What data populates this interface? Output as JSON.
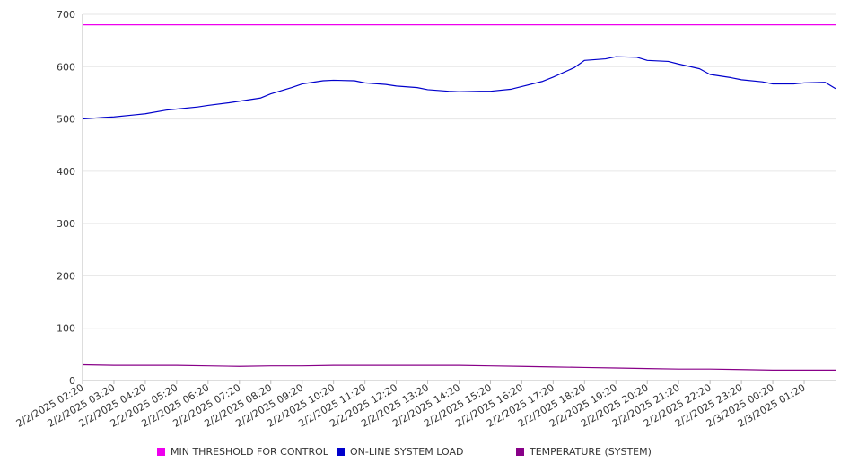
{
  "chart_data": {
    "type": "line",
    "title": "",
    "xlabel": "",
    "ylabel": "",
    "ylim": [
      0,
      700
    ],
    "yticks": [
      0,
      100,
      200,
      300,
      400,
      500,
      600,
      700
    ],
    "grid": true,
    "legend_position": "bottom",
    "x_tick_labels": [
      "2/2/2025 02:20",
      "2/2/2025 03:20",
      "2/2/2025 04:20",
      "2/2/2025 05:20",
      "2/2/2025 06:20",
      "2/2/2025 07:20",
      "2/2/2025 08:20",
      "2/2/2025 09:20",
      "2/2/2025 10:20",
      "2/2/2025 11:20",
      "2/2/2025 12:20",
      "2/2/2025 13:20",
      "2/2/2025 14:20",
      "2/2/2025 15:20",
      "2/2/2025 16:20",
      "2/2/2025 17:20",
      "2/2/2025 18:20",
      "2/2/2025 19:20",
      "2/2/2025 20:20",
      "2/2/2025 21:20",
      "2/2/2025 22:20",
      "2/2/2025 23:20",
      "2/3/2025 00:20",
      "2/3/2025 01:20"
    ],
    "x_range": [
      "2/2/2025 02:20",
      "2/3/2025 02:20"
    ],
    "series": [
      {
        "name": "MIN THRESHOLD FOR CONTROL",
        "color": "#ee00ee",
        "x": [
          "2/2/2025 02:20",
          "2/3/2025 02:20"
        ],
        "values": [
          680,
          680
        ]
      },
      {
        "name": "ON-LINE SYSTEM LOAD",
        "color": "#0000cc",
        "x": [
          "2/2/2025 02:20",
          "2/2/2025 03:00",
          "2/2/2025 03:20",
          "2/2/2025 04:00",
          "2/2/2025 04:20",
          "2/2/2025 05:00",
          "2/2/2025 05:20",
          "2/2/2025 06:00",
          "2/2/2025 06:20",
          "2/2/2025 07:00",
          "2/2/2025 07:20",
          "2/2/2025 08:00",
          "2/2/2025 08:20",
          "2/2/2025 09:00",
          "2/2/2025 09:20",
          "2/2/2025 10:00",
          "2/2/2025 10:20",
          "2/2/2025 11:00",
          "2/2/2025 11:20",
          "2/2/2025 12:00",
          "2/2/2025 12:20",
          "2/2/2025 13:00",
          "2/2/2025 13:20",
          "2/2/2025 14:00",
          "2/2/2025 14:20",
          "2/2/2025 15:00",
          "2/2/2025 15:20",
          "2/2/2025 16:00",
          "2/2/2025 16:20",
          "2/2/2025 17:00",
          "2/2/2025 17:20",
          "2/2/2025 18:00",
          "2/2/2025 18:20",
          "2/2/2025 19:00",
          "2/2/2025 19:20",
          "2/2/2025 20:00",
          "2/2/2025 20:20",
          "2/2/2025 21:00",
          "2/2/2025 21:20",
          "2/2/2025 22:00",
          "2/2/2025 22:20",
          "2/2/2025 23:00",
          "2/2/2025 23:20",
          "2/3/2025 00:00",
          "2/3/2025 00:20",
          "2/3/2025 01:00",
          "2/3/2025 01:20",
          "2/3/2025 02:00",
          "2/3/2025 02:20"
        ],
        "values": [
          500,
          503,
          504,
          508,
          510,
          517,
          519,
          523,
          526,
          531,
          534,
          540,
          548,
          560,
          567,
          573,
          574,
          573,
          569,
          566,
          563,
          560,
          556,
          553,
          552,
          553,
          553,
          557,
          562,
          572,
          580,
          598,
          612,
          615,
          619,
          618,
          612,
          610,
          605,
          596,
          585,
          579,
          575,
          571,
          567,
          567,
          569,
          570,
          558
        ]
      },
      {
        "name": "TEMPERATURE (SYSTEM)",
        "color": "#880088",
        "x": [
          "2/2/2025 02:20",
          "2/2/2025 03:20",
          "2/2/2025 04:20",
          "2/2/2025 05:20",
          "2/2/2025 06:20",
          "2/2/2025 07:20",
          "2/2/2025 08:20",
          "2/2/2025 09:20",
          "2/2/2025 10:20",
          "2/2/2025 11:20",
          "2/2/2025 12:20",
          "2/2/2025 13:20",
          "2/2/2025 14:20",
          "2/2/2025 15:20",
          "2/2/2025 16:20",
          "2/2/2025 17:20",
          "2/2/2025 18:20",
          "2/2/2025 19:20",
          "2/2/2025 20:20",
          "2/2/2025 21:20",
          "2/2/2025 22:20",
          "2/2/2025 23:20",
          "2/3/2025 00:20",
          "2/3/2025 01:20",
          "2/3/2025 02:20"
        ],
        "values": [
          30,
          29,
          29,
          29,
          28,
          27,
          28,
          28,
          29,
          29,
          29,
          29,
          29,
          28,
          27,
          26,
          25,
          24,
          23,
          22,
          22,
          21,
          20,
          20,
          20
        ]
      }
    ]
  }
}
